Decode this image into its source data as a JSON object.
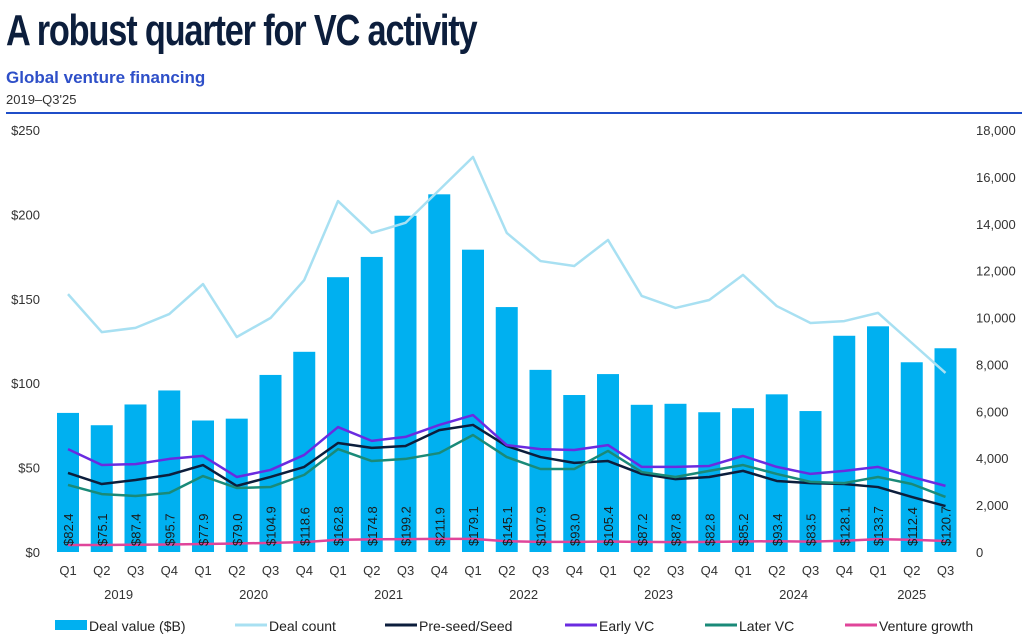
{
  "header": {
    "title": "A robust quarter for VC activity",
    "subtitle": "Global venture financing",
    "range": "2019–Q3'25"
  },
  "colors": {
    "deal_value": "#00b0f0",
    "deal_count": "#a8e0f2",
    "pre_seed_seed": "#0c1e3c",
    "early_vc": "#6a2be0",
    "later_vc": "#1a8a78",
    "venture_growth": "#e0459a",
    "divider": "#1f4ec8"
  },
  "chart_data": {
    "type": "bar",
    "title": "Global venture financing",
    "subtitle": "2019–Q3'25",
    "categories": [
      "Q1",
      "Q2",
      "Q3",
      "Q4",
      "Q1",
      "Q2",
      "Q3",
      "Q4",
      "Q1",
      "Q2",
      "Q3",
      "Q4",
      "Q1",
      "Q2",
      "Q3",
      "Q4",
      "Q1",
      "Q2",
      "Q3",
      "Q4",
      "Q1",
      "Q2",
      "Q3",
      "Q4",
      "Q1",
      "Q2",
      "Q3"
    ],
    "year_groups": [
      {
        "label": "2019",
        "start": 0,
        "count": 4
      },
      {
        "label": "2020",
        "start": 4,
        "count": 4
      },
      {
        "label": "2021",
        "start": 8,
        "count": 4
      },
      {
        "label": "2022",
        "start": 12,
        "count": 4
      },
      {
        "label": "2023",
        "start": 16,
        "count": 4
      },
      {
        "label": "2024",
        "start": 20,
        "count": 4
      },
      {
        "label": "2025",
        "start": 24,
        "count": 3
      }
    ],
    "y_left": {
      "label": "Deal value ($B)",
      "range": [
        0,
        250
      ],
      "ticks": [
        0,
        50,
        100,
        150,
        200,
        250
      ],
      "tick_labels": [
        "$0",
        "$50",
        "$100",
        "$150",
        "$200",
        "$250"
      ]
    },
    "y_right": {
      "label": "Deal count",
      "range": [
        0,
        18000
      ],
      "ticks": [
        0,
        2000,
        4000,
        6000,
        8000,
        10000,
        12000,
        14000,
        16000,
        18000
      ],
      "tick_labels": [
        "0",
        "2,000",
        "4,000",
        "6,000",
        "8,000",
        "10,000",
        "12,000",
        "14,000",
        "16,000",
        "18,000"
      ]
    },
    "grid": false,
    "legend_position": "bottom",
    "series": [
      {
        "name": "Deal value ($B)",
        "type": "bar",
        "axis": "left",
        "values": [
          82.4,
          75.1,
          87.4,
          95.7,
          77.9,
          79.0,
          104.9,
          118.6,
          162.8,
          174.8,
          199.2,
          211.9,
          179.1,
          145.1,
          107.9,
          93.0,
          105.4,
          87.2,
          87.8,
          82.8,
          85.2,
          93.4,
          83.5,
          128.1,
          133.7,
          112.4,
          120.7
        ],
        "labels": [
          "$82.4",
          "$75.1",
          "$87.4",
          "$95.7",
          "$77.9",
          "$79.0",
          "$104.9",
          "$118.6",
          "$162.8",
          "$174.8",
          "$199.2",
          "$211.9",
          "$179.1",
          "$145.1",
          "$107.9",
          "$93.0",
          "$105.4",
          "$87.2",
          "$87.8",
          "$82.8",
          "$85.2",
          "$93.4",
          "$83.5",
          "$128.1",
          "$133.7",
          "$112.4",
          "$120.7"
        ]
      },
      {
        "name": "Deal count",
        "type": "line",
        "axis": "right",
        "values": [
          11000,
          9380,
          9560,
          10150,
          11430,
          9170,
          9980,
          11600,
          14970,
          13610,
          14040,
          15440,
          16850,
          13610,
          12410,
          12200,
          13310,
          10920,
          10410,
          10750,
          11820,
          10490,
          9770,
          9850,
          10200,
          8920,
          7640
        ]
      },
      {
        "name": "Pre-seed/Seed",
        "type": "line",
        "axis": "right",
        "values": [
          3370,
          2900,
          3070,
          3290,
          3710,
          2820,
          3200,
          3630,
          4650,
          4440,
          4520,
          5200,
          5420,
          4520,
          4050,
          3800,
          3880,
          3330,
          3110,
          3200,
          3460,
          3030,
          2940,
          2900,
          2770,
          2350,
          1960
        ]
      },
      {
        "name": "Early VC",
        "type": "line",
        "axis": "right",
        "values": [
          4390,
          3710,
          3750,
          3970,
          4100,
          3200,
          3500,
          4140,
          5330,
          4740,
          4910,
          5420,
          5840,
          4560,
          4390,
          4350,
          4560,
          3630,
          3630,
          3670,
          4100,
          3630,
          3330,
          3460,
          3630,
          3200,
          2820
        ]
      },
      {
        "name": "Later VC",
        "type": "line",
        "axis": "right",
        "values": [
          2860,
          2470,
          2390,
          2520,
          3240,
          2730,
          2770,
          3290,
          4390,
          3880,
          3970,
          4220,
          4990,
          4050,
          3540,
          3540,
          4310,
          3410,
          3200,
          3460,
          3710,
          3330,
          2990,
          2940,
          3200,
          2900,
          2350
        ]
      },
      {
        "name": "Venture growth",
        "type": "line",
        "axis": "right",
        "values": [
          300,
          300,
          310,
          320,
          340,
          360,
          390,
          420,
          520,
          540,
          550,
          560,
          560,
          460,
          430,
          430,
          450,
          430,
          420,
          430,
          450,
          460,
          440,
          480,
          550,
          520,
          470
        ]
      }
    ]
  }
}
